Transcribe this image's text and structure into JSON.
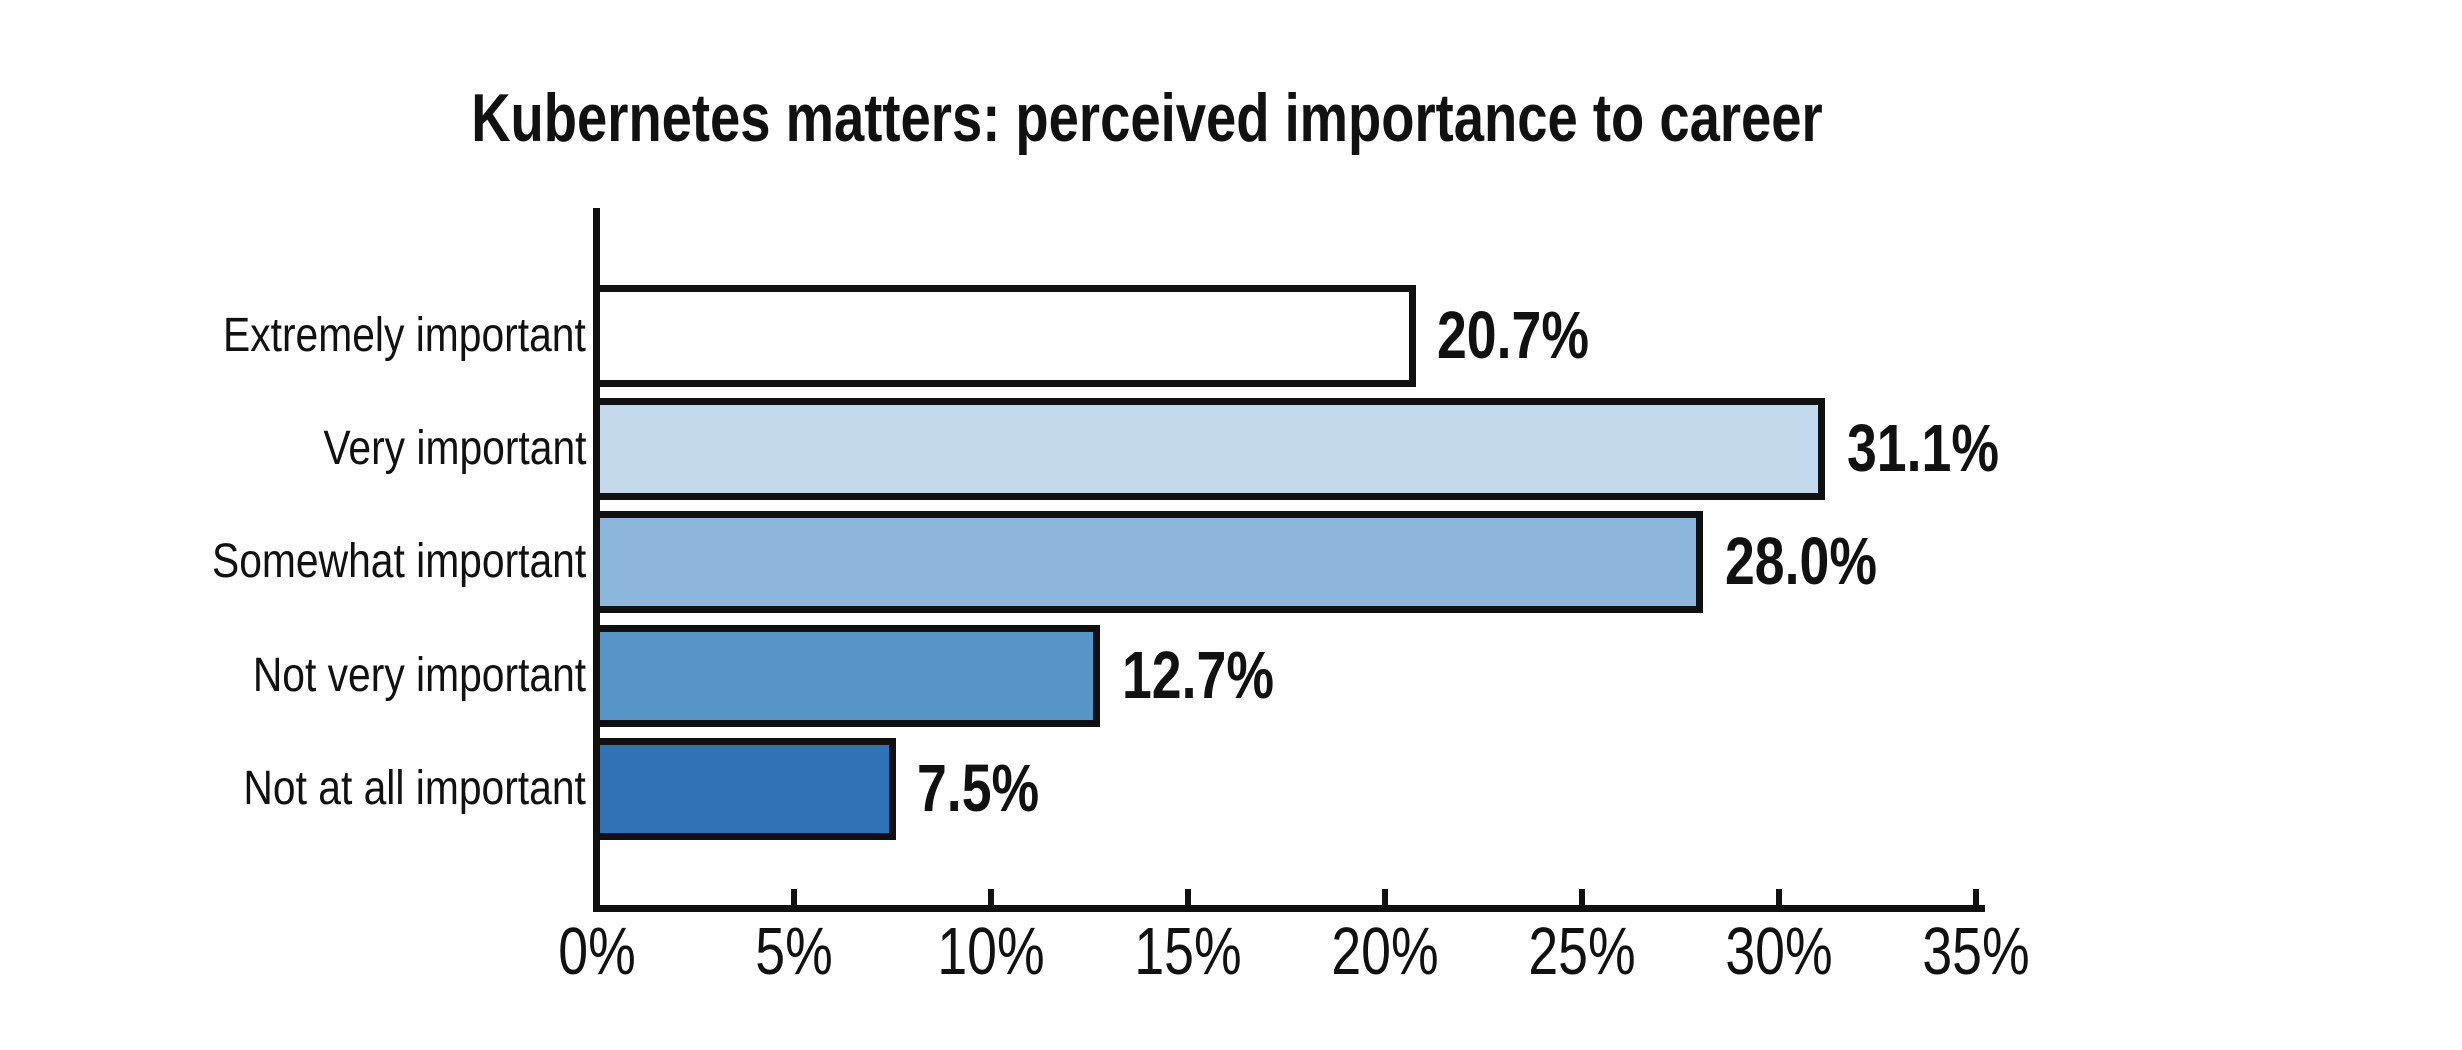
{
  "chart_data": {
    "type": "bar",
    "orientation": "horizontal",
    "title": "Kubernetes matters: perceived importance to career",
    "categories": [
      "Extremely important",
      "Very important",
      "Somewhat important",
      "Not very important",
      "Not at all important"
    ],
    "values": [
      20.7,
      31.1,
      28.0,
      12.7,
      7.5
    ],
    "value_labels": [
      "20.7%",
      "31.1%",
      "28.0%",
      "12.7%",
      "7.5%"
    ],
    "xlabel": "",
    "ylabel": "",
    "xlim": [
      0,
      35
    ],
    "xticks": [
      {
        "value": 0,
        "label": "0%"
      },
      {
        "value": 5,
        "label": "5%"
      },
      {
        "value": 10,
        "label": "10%"
      },
      {
        "value": 15,
        "label": "15%"
      },
      {
        "value": 20,
        "label": "20%"
      },
      {
        "value": 25,
        "label": "25%"
      },
      {
        "value": 30,
        "label": "30%"
      },
      {
        "value": 35,
        "label": "35%"
      }
    ],
    "grid": false,
    "legend": "none",
    "bar_colors": [
      "#FFFFFF",
      "#C5D9ED",
      "#8DB6DC",
      "#5794C7",
      "#2F72B5"
    ],
    "bar_border_color": "#111111",
    "axis_color": "#111111",
    "text_color": "#111111",
    "background_color": "#FFFFFF"
  }
}
